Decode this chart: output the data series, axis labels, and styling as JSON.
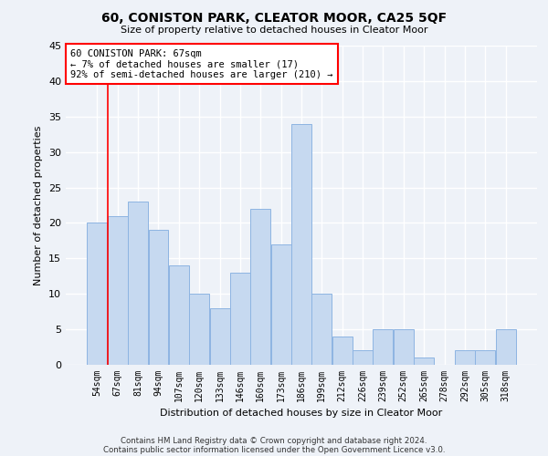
{
  "title1": "60, CONISTON PARK, CLEATOR MOOR, CA25 5QF",
  "title2": "Size of property relative to detached houses in Cleator Moor",
  "xlabel": "Distribution of detached houses by size in Cleator Moor",
  "ylabel": "Number of detached properties",
  "categories": [
    "54sqm",
    "67sqm",
    "81sqm",
    "94sqm",
    "107sqm",
    "120sqm",
    "133sqm",
    "146sqm",
    "160sqm",
    "173sqm",
    "186sqm",
    "199sqm",
    "212sqm",
    "226sqm",
    "239sqm",
    "252sqm",
    "265sqm",
    "278sqm",
    "292sqm",
    "305sqm",
    "318sqm"
  ],
  "values": [
    20,
    21,
    23,
    19,
    14,
    10,
    8,
    13,
    22,
    17,
    34,
    10,
    4,
    2,
    5,
    5,
    1,
    0,
    2,
    2,
    5
  ],
  "bar_color": "#c6d9f0",
  "bar_edge_color": "#8db4e2",
  "annotation_box_color": "#ffffff",
  "annotation_box_edge_color": "#ff0000",
  "ylim": [
    0,
    45
  ],
  "yticks": [
    0,
    5,
    10,
    15,
    20,
    25,
    30,
    35,
    40,
    45
  ],
  "footnote1": "Contains HM Land Registry data © Crown copyright and database right 2024.",
  "footnote2": "Contains public sector information licensed under the Open Government Licence v3.0.",
  "bg_color": "#eef2f8",
  "grid_color": "#ffffff"
}
